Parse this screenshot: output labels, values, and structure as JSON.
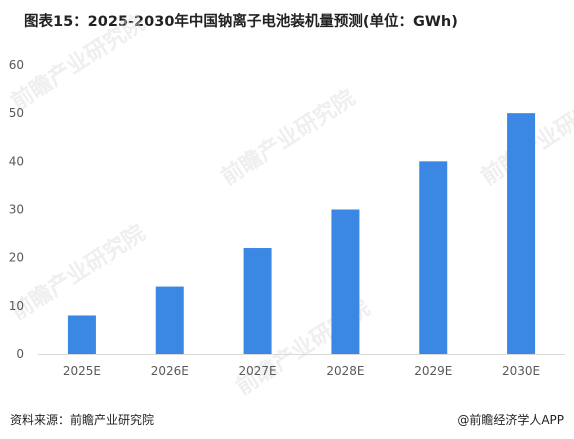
{
  "title": "图表15：2025-2030年中国钠离子电池装机量预测(单位：GWh)",
  "source": "资料来源：前瞻产业研究院",
  "credit": "@前瞻经济学人APP",
  "watermark": "前瞻产业研究院",
  "colors": {
    "bar": "#3b87e4",
    "axis": "#d9d9d9",
    "tick_text": "#595959"
  },
  "chart_data": {
    "type": "bar",
    "categories": [
      "2025E",
      "2026E",
      "2027E",
      "2028E",
      "2029E",
      "2030E"
    ],
    "values": [
      8,
      14,
      22,
      30,
      40,
      50
    ],
    "title": "图表15：2025-2030年中国钠离子电池装机量预测(单位：GWh)",
    "xlabel": "",
    "ylabel": "",
    "ylim": [
      0,
      60
    ],
    "yticks": [
      0,
      10,
      20,
      30,
      40,
      50,
      60
    ],
    "grid": false,
    "legend": "none"
  }
}
